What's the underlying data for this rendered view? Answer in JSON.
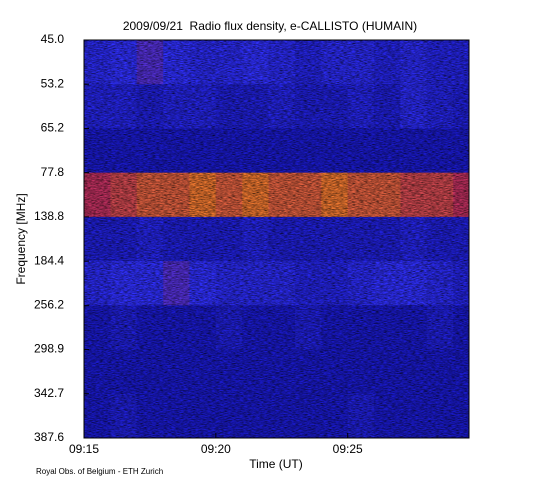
{
  "chart_data": {
    "type": "spectrogram",
    "title": "2009/09/21  Radio flux density, e-CALLISTO (HUMAIN)",
    "ylabel": "Frequency [MHz]",
    "xlabel": "Time (UT)",
    "footnote": "Royal Obs. of Belgium - ETH Zurich",
    "yticks": [
      {
        "value": 45,
        "label": "45.0"
      },
      53.2,
      65.2,
      77.8,
      138.8,
      184.4,
      256.2,
      298.9,
      342.7,
      387.6
    ],
    "xlim": [
      555,
      569.6
    ],
    "xticks": [
      {
        "value": 555,
        "label": "09:15"
      },
      {
        "value": 560,
        "label": "09:20"
      },
      {
        "value": 565,
        "label": "09:25"
      }
    ],
    "x": [
      555,
      556,
      557,
      558,
      559,
      560,
      561,
      562,
      563,
      564,
      565,
      566,
      567,
      568,
      569
    ],
    "z": [
      [
        0.35,
        0.4,
        0.45,
        0.4,
        0.35,
        0.35,
        0.4,
        0.35,
        0.3,
        0.35,
        0.35,
        0.3,
        0.35,
        0.3,
        0.3
      ],
      [
        0.3,
        0.3,
        0.25,
        0.3,
        0.3,
        0.25,
        0.25,
        0.3,
        0.25,
        0.25,
        0.3,
        0.25,
        0.35,
        0.3,
        0.25
      ],
      [
        0.2,
        0.2,
        0.2,
        0.2,
        0.2,
        0.2,
        0.2,
        0.2,
        0.2,
        0.2,
        0.2,
        0.2,
        0.2,
        0.2,
        0.2
      ],
      [
        0.6,
        0.65,
        0.7,
        0.7,
        0.75,
        0.7,
        0.75,
        0.7,
        0.7,
        0.75,
        0.7,
        0.7,
        0.65,
        0.65,
        0.6
      ],
      [
        0.25,
        0.25,
        0.3,
        0.25,
        0.25,
        0.25,
        0.3,
        0.25,
        0.25,
        0.25,
        0.25,
        0.25,
        0.3,
        0.25,
        0.25
      ],
      [
        0.35,
        0.4,
        0.4,
        0.45,
        0.4,
        0.35,
        0.35,
        0.35,
        0.3,
        0.3,
        0.35,
        0.4,
        0.4,
        0.35,
        0.3
      ],
      [
        0.2,
        0.25,
        0.2,
        0.2,
        0.2,
        0.25,
        0.2,
        0.2,
        0.25,
        0.2,
        0.2,
        0.2,
        0.2,
        0.25,
        0.2
      ],
      [
        0.2,
        0.2,
        0.2,
        0.2,
        0.2,
        0.2,
        0.2,
        0.2,
        0.2,
        0.2,
        0.2,
        0.2,
        0.2,
        0.2,
        0.2
      ],
      [
        0.2,
        0.25,
        0.2,
        0.2,
        0.2,
        0.2,
        0.2,
        0.2,
        0.2,
        0.2,
        0.25,
        0.2,
        0.2,
        0.2,
        0.2
      ]
    ],
    "y_inverted": true
  }
}
